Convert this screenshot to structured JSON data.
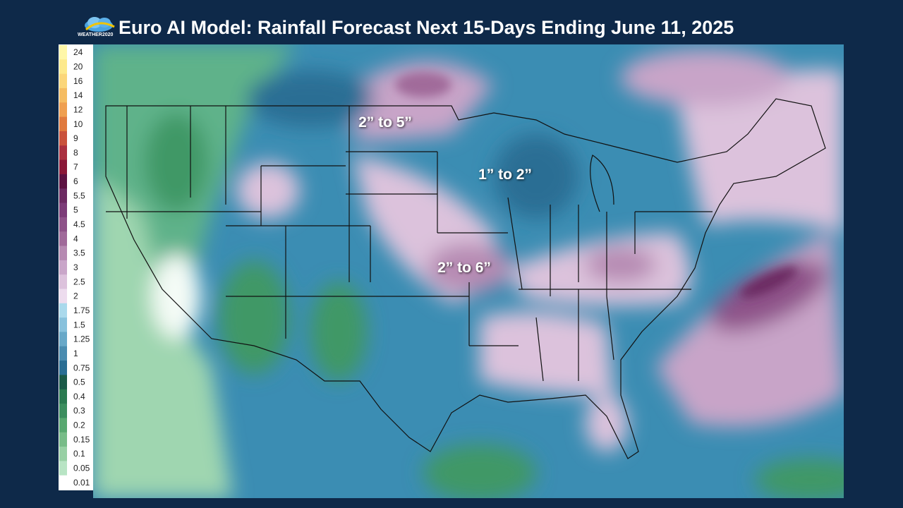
{
  "header": {
    "logo_text": "WEATHER2020",
    "title": "Euro AI Model: Rainfall Forecast Next 15-Days Ending June 11, 2025"
  },
  "legend": [
    {
      "label": "24",
      "color": "#fff7a8"
    },
    {
      "label": "20",
      "color": "#fde98c"
    },
    {
      "label": "16",
      "color": "#fbd67a"
    },
    {
      "label": "14",
      "color": "#f5bc62"
    },
    {
      "label": "12",
      "color": "#ef9f50"
    },
    {
      "label": "10",
      "color": "#e07a3e"
    },
    {
      "label": "9",
      "color": "#c9523c"
    },
    {
      "label": "8",
      "color": "#aa3040"
    },
    {
      "label": "7",
      "color": "#8a1838"
    },
    {
      "label": "6",
      "color": "#5c1242"
    },
    {
      "label": "5.5",
      "color": "#6c2a62"
    },
    {
      "label": "5",
      "color": "#7c3c78"
    },
    {
      "label": "4.5",
      "color": "#8e5289"
    },
    {
      "label": "4",
      "color": "#a06a9a"
    },
    {
      "label": "3.5",
      "color": "#b68ab2"
    },
    {
      "label": "3",
      "color": "#c9a6c9"
    },
    {
      "label": "2.5",
      "color": "#dcc2dc"
    },
    {
      "label": "2",
      "color": "#eddcee"
    },
    {
      "label": "1.75",
      "color": "#aad9ec"
    },
    {
      "label": "1.5",
      "color": "#88c1dc"
    },
    {
      "label": "1.25",
      "color": "#68a8c8"
    },
    {
      "label": "1",
      "color": "#4a8cb0"
    },
    {
      "label": "0.75",
      "color": "#2a6e94"
    },
    {
      "label": "0.5",
      "color": "#1b5a48"
    },
    {
      "label": "0.4",
      "color": "#2a7a50"
    },
    {
      "label": "0.3",
      "color": "#3c8e5e"
    },
    {
      "label": "0.2",
      "color": "#58a870"
    },
    {
      "label": "0.15",
      "color": "#78bc88"
    },
    {
      "label": "0.1",
      "color": "#98d0a4"
    },
    {
      "label": "0.05",
      "color": "#b8e4c4"
    },
    {
      "label": "0.01",
      "color": "#ffffff"
    }
  ],
  "annotations": [
    {
      "text": "2” to 5”"
    },
    {
      "text": "1” to 2”"
    },
    {
      "text": "2” to 6”"
    }
  ]
}
